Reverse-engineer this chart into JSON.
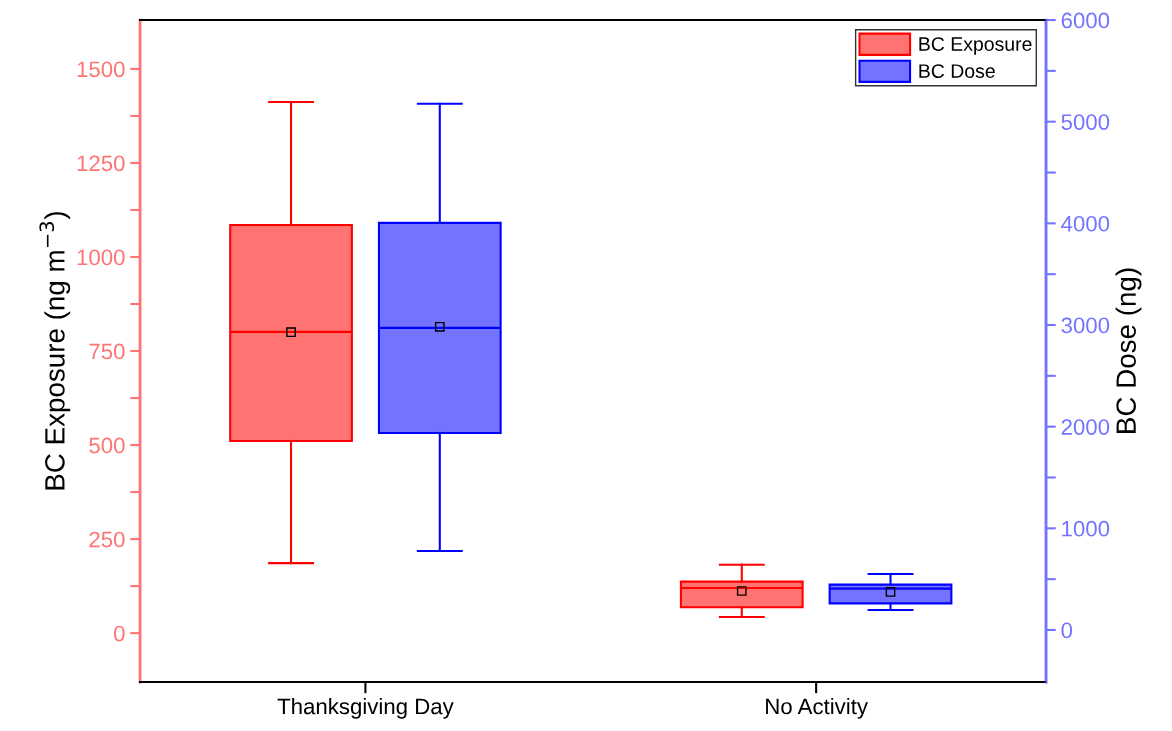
{
  "chart_data": {
    "type": "box",
    "categories": [
      "Thanksgiving Day",
      "No Activity"
    ],
    "ylabel": "BC Exposure (ng m$^{−3}$)",
    "y2label": "BC Dose (ng)",
    "ylim": [
      -130,
      1630
    ],
    "yticks": [
      0,
      {
        "value": 125,
        "label": null
      },
      250,
      {
        "value": 375,
        "label": null
      },
      500,
      {
        "value": 625,
        "label": null
      },
      750,
      {
        "value": 875,
        "label": null
      },
      1000,
      {
        "value": 1125,
        "label": null
      },
      1250,
      {
        "value": 1375,
        "label": null
      },
      1500
    ],
    "y2lim": [
      -512,
      6000
    ],
    "y2ticks": [
      0,
      {
        "value": 500,
        "label": null
      },
      1000,
      {
        "value": 1500,
        "label": null
      },
      2000,
      {
        "value": 2500,
        "label": null
      },
      3000,
      {
        "value": 3500,
        "label": null
      },
      4000,
      {
        "value": 4500,
        "label": null
      },
      5000,
      {
        "value": 5500,
        "label": null
      },
      6000
    ],
    "legend": "top right",
    "marker": "square",
    "grid": false,
    "series": [
      {
        "name": "BC Exposure",
        "color": "#ff0000",
        "boxes": [
          {
            "low": 186,
            "q1": 511,
            "median": 801,
            "q3": 1085,
            "high": 1412,
            "mean": 800
          },
          {
            "low": 43,
            "q1": 69,
            "median": 120,
            "q3": 137,
            "high": 182,
            "mean": 112
          }
        ]
      },
      {
        "name": "BC Dose",
        "color": "#0000ff",
        "axis": "y2",
        "boxes": [
          {
            "low": 777,
            "q1": 1938,
            "median": 2972,
            "q3": 4005,
            "high": 5176,
            "mean": 2982
          },
          {
            "low": 197,
            "q1": 262,
            "median": 407,
            "q3": 446,
            "high": 551,
            "mean": 374
          }
        ]
      }
    ]
  }
}
